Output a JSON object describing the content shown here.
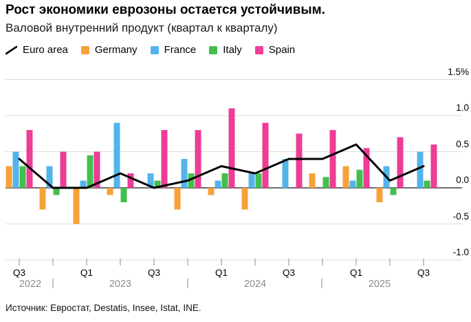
{
  "title": "Рост экономики еврозоны остается устойчивым.",
  "subtitle": "Валовой внутренний продукт (квартал к кварталу)",
  "source": "Источник: Евростат, Destatis, Insee, Istat, INE.",
  "legend": [
    {
      "label": "Euro area",
      "type": "line",
      "color": "#000000"
    },
    {
      "label": "Germany",
      "type": "square",
      "color": "#F7A139"
    },
    {
      "label": "France",
      "type": "square",
      "color": "#53B4EA"
    },
    {
      "label": "Italy",
      "type": "square",
      "color": "#43BF4E"
    },
    {
      "label": "Spain",
      "type": "square",
      "color": "#ED3D96"
    }
  ],
  "chart_data": {
    "type": "bar",
    "note": "grouped quarterly GDP bars with Euro area overlay line, unit % QoQ",
    "categories": [
      "Q3 2022",
      "Q4 2022",
      "Q1 2023",
      "Q2 2023",
      "Q3 2023",
      "Q4 2023",
      "Q1 2024",
      "Q2 2024",
      "Q3 2024",
      "Q4 2024",
      "Q1 2025",
      "Q2 2025",
      "Q3 2025"
    ],
    "series": [
      {
        "name": "Euro area",
        "render": "line",
        "color": "#000000",
        "values": [
          0.4,
          0.0,
          0.0,
          0.2,
          0.0,
          0.1,
          0.3,
          0.2,
          0.4,
          0.4,
          0.6,
          0.1,
          0.3
        ]
      },
      {
        "name": "Germany",
        "render": "bar",
        "color": "#F7A139",
        "values": [
          0.3,
          -0.3,
          -0.5,
          -0.1,
          0.0,
          -0.3,
          -0.1,
          -0.3,
          0.0,
          0.2,
          0.3,
          -0.2,
          0.0
        ]
      },
      {
        "name": "France",
        "render": "bar",
        "color": "#53B4EA",
        "values": [
          0.5,
          0.3,
          0.1,
          0.9,
          0.2,
          0.4,
          0.1,
          0.2,
          0.4,
          0.0,
          0.1,
          0.3,
          0.5
        ]
      },
      {
        "name": "Italy",
        "render": "bar",
        "color": "#43BF4E",
        "values": [
          0.3,
          -0.1,
          0.45,
          -0.2,
          0.1,
          0.2,
          0.2,
          0.2,
          0.0,
          0.15,
          0.25,
          -0.1,
          0.1
        ]
      },
      {
        "name": "Spain",
        "render": "bar",
        "color": "#ED3D96",
        "values": [
          0.8,
          0.5,
          0.5,
          0.2,
          0.8,
          0.8,
          1.1,
          0.9,
          0.75,
          0.8,
          0.55,
          0.7,
          0.6
        ]
      }
    ],
    "y_axis": {
      "ticks": [
        1.5,
        1.0,
        0.5,
        0.0,
        -0.5,
        -1.0
      ],
      "labels": [
        "1.5%",
        "1.0",
        "0.5",
        "0.0",
        "-0.5",
        "-1.0"
      ],
      "range": [
        -1.0,
        1.5
      ],
      "grid": true,
      "side": "right"
    },
    "x_axis": {
      "quarter_labels": [
        {
          "index": 0,
          "text": "Q3"
        },
        {
          "index": 2,
          "text": "Q1"
        },
        {
          "index": 4,
          "text": "Q3"
        },
        {
          "index": 6,
          "text": "Q1"
        },
        {
          "index": 8,
          "text": "Q3"
        },
        {
          "index": 10,
          "text": "Q1"
        },
        {
          "index": 12,
          "text": "Q3"
        }
      ],
      "year_labels": [
        "2022",
        "2023",
        "2024",
        "2025"
      ],
      "year_separator": "|"
    },
    "legend_position": "top"
  }
}
